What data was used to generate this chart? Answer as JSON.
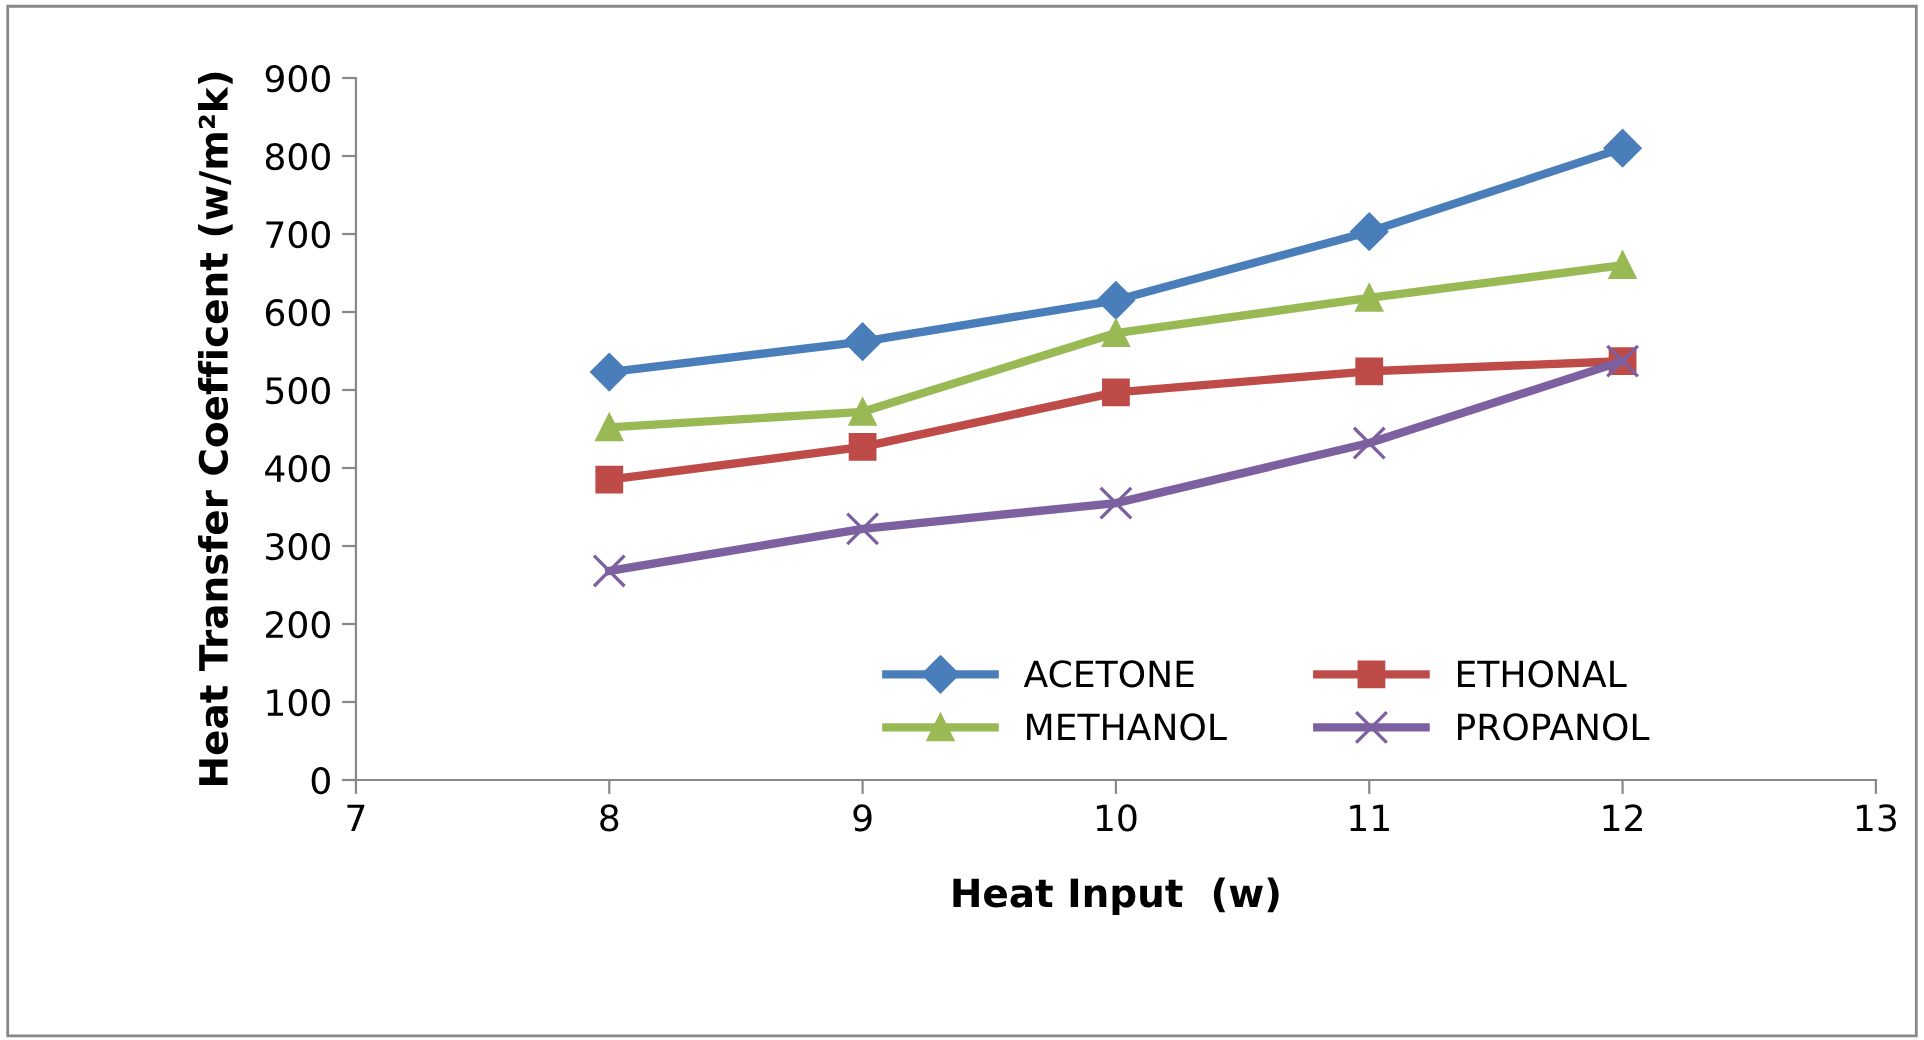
{
  "chart_data": {
    "type": "line",
    "xlabel": "Heat Input  (w)",
    "ylabel": "Heat Transfer Coefficent (w/m²k)",
    "x": [
      8,
      9,
      10,
      11,
      12
    ],
    "series": [
      {
        "name": "ACETONE",
        "color": "#4a7ebb",
        "marker": "diamond",
        "values": [
          523,
          562,
          615,
          703,
          810
        ]
      },
      {
        "name": "ETHONAL",
        "color": "#be4b48",
        "marker": "square",
        "values": [
          385,
          427,
          497,
          524,
          537
        ]
      },
      {
        "name": "METHANOL",
        "color": "#98b954",
        "marker": "triangle",
        "values": [
          452,
          472,
          573,
          618,
          660
        ]
      },
      {
        "name": "PROPANOL",
        "color": "#7d60a0",
        "marker": "cross",
        "values": [
          268,
          322,
          355,
          432,
          537
        ]
      }
    ],
    "xlim": [
      7,
      13
    ],
    "xticks": [
      7,
      8,
      9,
      10,
      11,
      12,
      13
    ],
    "ylim": [
      0,
      900
    ],
    "yticks": [
      0,
      100,
      200,
      300,
      400,
      500,
      600,
      700,
      800,
      900
    ],
    "grid": false,
    "legend": "bottom right",
    "line_style": "solid"
  }
}
